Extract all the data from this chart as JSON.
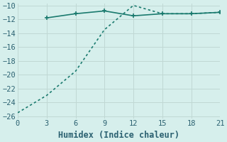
{
  "line1_x": [
    3,
    6,
    9,
    12,
    15,
    18,
    21
  ],
  "line1_y": [
    -11.8,
    -11.2,
    -10.8,
    -11.5,
    -11.2,
    -11.2,
    -11.0
  ],
  "line2_x": [
    0,
    3,
    6,
    9,
    12,
    15,
    18,
    21
  ],
  "line2_y": [
    -25.5,
    -23.0,
    -19.5,
    -13.5,
    -10.0,
    -11.2,
    -11.2,
    -11.0
  ],
  "line_color": "#1a7a6e",
  "bg_color": "#d6efec",
  "grid_color": "#c0d8d4",
  "xlabel": "Humidex (Indice chaleur)",
  "xlim": [
    0,
    21
  ],
  "ylim": [
    -26,
    -10
  ],
  "xticks": [
    0,
    3,
    6,
    9,
    12,
    15,
    18,
    21
  ],
  "yticks": [
    -10,
    -12,
    -14,
    -16,
    -18,
    -20,
    -22,
    -24,
    -26
  ],
  "font_color": "#2a6070",
  "tick_fontsize": 7.5,
  "xlabel_fontsize": 8.5,
  "marker": "+",
  "marker_size": 5,
  "marker_ew": 1.2,
  "line_width": 1.2,
  "figsize": [
    3.2,
    2.0
  ],
  "dpi": 100
}
